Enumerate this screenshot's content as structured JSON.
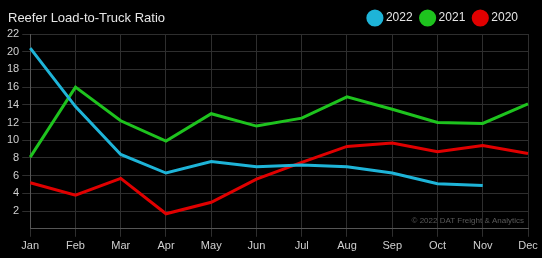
{
  "chart_data": {
    "type": "line",
    "title": "Reefer Load-to-Truck Ratio",
    "annotation": "© 2022 DAT Freight & Analytics",
    "categories": [
      "Jan",
      "Feb",
      "Mar",
      "Apr",
      "May",
      "Jun",
      "Jul",
      "Aug",
      "Sep",
      "Oct",
      "Nov",
      "Dec"
    ],
    "series": [
      {
        "name": "2022",
        "color": "#1eb4d8",
        "values": [
          20.4,
          13.8,
          8.4,
          6.3,
          7.6,
          7.0,
          7.2,
          7.0,
          6.3,
          5.1,
          4.9,
          null
        ]
      },
      {
        "name": "2021",
        "color": "#1ec31e",
        "values": [
          8.1,
          16.0,
          12.2,
          9.9,
          13.0,
          11.6,
          12.5,
          14.9,
          13.5,
          12.0,
          11.9,
          14.1
        ]
      },
      {
        "name": "2020",
        "color": "#e00000",
        "values": [
          5.2,
          3.8,
          5.7,
          1.7,
          3.0,
          5.6,
          7.5,
          9.3,
          9.7,
          8.7,
          9.4,
          8.5
        ]
      }
    ],
    "ylim": [
      0,
      22
    ],
    "yticks": [
      2,
      4,
      6,
      8,
      10,
      12,
      14,
      16,
      18,
      20,
      22
    ],
    "grid": true,
    "legend": "top-right"
  }
}
